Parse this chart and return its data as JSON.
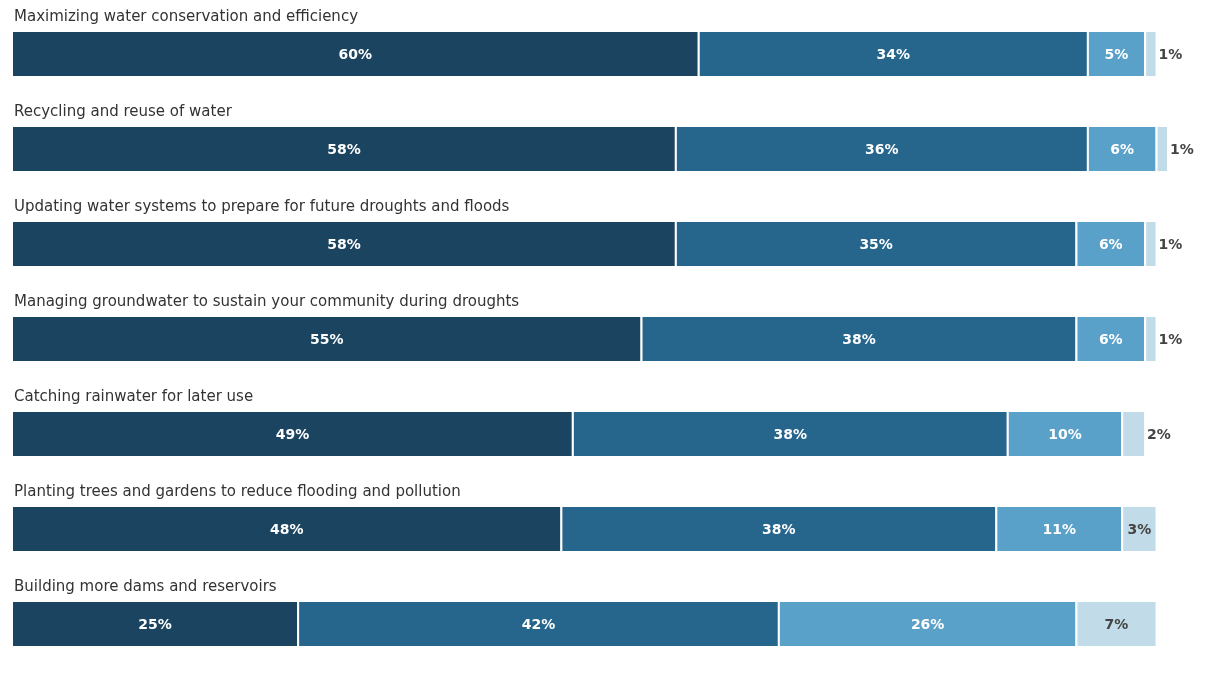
{
  "chart_data": {
    "type": "bar",
    "orientation": "horizontal",
    "stacked": true,
    "xlim": [
      0,
      101
    ],
    "categories": [
      "Maximizing water conservation and efficiency",
      "Recycling and reuse of water",
      "Updating water systems to prepare for future droughts and floods",
      "Managing groundwater to sustain your community during droughts",
      "Catching rainwater for later use",
      "Planting trees and gardens to reduce flooding and pollution",
      "Building more dams and reservoirs"
    ],
    "series": [
      {
        "color": "#1b4460",
        "values": [
          60,
          58,
          58,
          55,
          49,
          48,
          25
        ],
        "value_labels": [
          "60%",
          "58%",
          "58%",
          "55%",
          "49%",
          "48%",
          "25%"
        ]
      },
      {
        "color": "#26658c",
        "values": [
          34,
          36,
          35,
          38,
          38,
          38,
          42
        ],
        "value_labels": [
          "34%",
          "36%",
          "35%",
          "38%",
          "38%",
          "38%",
          "42%"
        ]
      },
      {
        "color": "#5aa1ca",
        "values": [
          5,
          6,
          6,
          6,
          10,
          11,
          26
        ],
        "value_labels": [
          "5%",
          "6%",
          "6%",
          "6%",
          "10%",
          "11%",
          "26%"
        ]
      },
      {
        "color": "#c2dbe9",
        "values": [
          1,
          1,
          1,
          1,
          2,
          3,
          7
        ],
        "value_labels": [
          "1%",
          "1%",
          "1%",
          "1%",
          "2%",
          "3%",
          "7%"
        ]
      }
    ]
  }
}
